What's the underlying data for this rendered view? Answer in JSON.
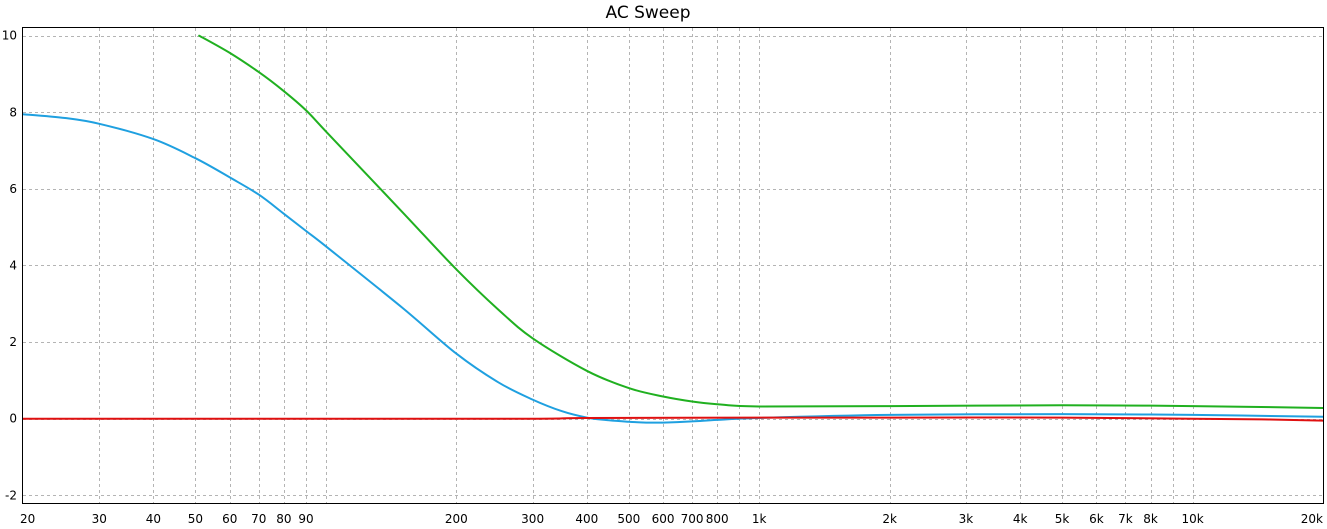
{
  "chart_data": {
    "type": "line",
    "title": "AC Sweep",
    "xlabel": "",
    "ylabel": "",
    "x_scale": "log",
    "xlim": [
      20,
      20000
    ],
    "ylim": [
      -2.2,
      10.2
    ],
    "grid": true,
    "legend": "none",
    "x_ticks": [
      {
        "v": 20,
        "label": "20"
      },
      {
        "v": 30,
        "label": "30"
      },
      {
        "v": 40,
        "label": "40"
      },
      {
        "v": 50,
        "label": "50"
      },
      {
        "v": 60,
        "label": "60"
      },
      {
        "v": 70,
        "label": "70"
      },
      {
        "v": 80,
        "label": "80"
      },
      {
        "v": 90,
        "label": "90"
      },
      {
        "v": 100,
        "label": ""
      },
      {
        "v": 200,
        "label": "200"
      },
      {
        "v": 300,
        "label": "300"
      },
      {
        "v": 400,
        "label": "400"
      },
      {
        "v": 500,
        "label": "500"
      },
      {
        "v": 600,
        "label": "600"
      },
      {
        "v": 700,
        "label": "700"
      },
      {
        "v": 800,
        "label": "800"
      },
      {
        "v": 900,
        "label": ""
      },
      {
        "v": 1000,
        "label": "1k"
      },
      {
        "v": 2000,
        "label": "2k"
      },
      {
        "v": 3000,
        "label": "3k"
      },
      {
        "v": 4000,
        "label": "4k"
      },
      {
        "v": 5000,
        "label": "5k"
      },
      {
        "v": 6000,
        "label": "6k"
      },
      {
        "v": 7000,
        "label": "7k"
      },
      {
        "v": 8000,
        "label": "8k"
      },
      {
        "v": 9000,
        "label": ""
      },
      {
        "v": 10000,
        "label": "10k"
      },
      {
        "v": 20000,
        "label": "20k"
      }
    ],
    "y_ticks": [
      -2,
      0,
      2,
      4,
      6,
      8,
      10
    ],
    "series": [
      {
        "color": "#1fa0e0",
        "x": [
          20,
          25,
          30,
          40,
          50,
          60,
          70,
          80,
          90,
          100,
          150,
          200,
          250,
          300,
          350,
          400,
          450,
          500,
          550,
          600,
          700,
          800,
          1000,
          2000,
          5000,
          10000,
          20000
        ],
        "y": [
          7.95,
          7.85,
          7.7,
          7.3,
          6.8,
          6.3,
          5.85,
          5.35,
          4.9,
          4.5,
          2.9,
          1.7,
          0.95,
          0.5,
          0.2,
          0.03,
          -0.04,
          -0.08,
          -0.1,
          -0.1,
          -0.07,
          -0.03,
          0.02,
          0.1,
          0.12,
          0.1,
          0.05
        ]
      },
      {
        "color": "#20b020",
        "x": [
          51,
          60,
          70,
          80,
          90,
          100,
          150,
          200,
          250,
          300,
          400,
          500,
          600,
          700,
          800,
          1000,
          2000,
          5000,
          10000,
          20000
        ],
        "y": [
          10.0,
          9.55,
          9.05,
          8.55,
          8.05,
          7.5,
          5.4,
          3.9,
          2.85,
          2.1,
          1.25,
          0.8,
          0.58,
          0.45,
          0.38,
          0.32,
          0.33,
          0.35,
          0.33,
          0.28
        ]
      },
      {
        "color": "#e01010",
        "x": [
          20,
          100,
          300,
          400,
          1000,
          2000,
          5000,
          10000,
          15000,
          20000
        ],
        "y": [
          0.0,
          0.0,
          0.0,
          0.02,
          0.03,
          0.03,
          0.03,
          0.0,
          -0.02,
          -0.05
        ]
      }
    ]
  }
}
